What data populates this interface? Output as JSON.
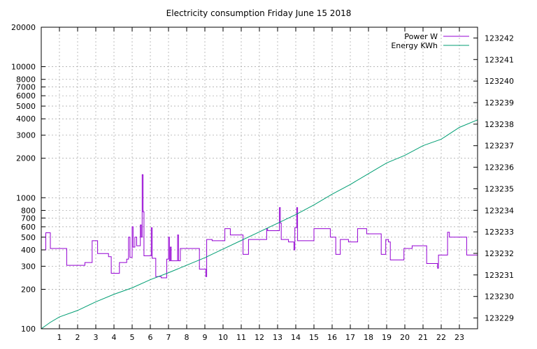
{
  "chart_data": {
    "type": "line",
    "title": "Electricity consumption Friday June 15 2018",
    "x": {
      "range": [
        0,
        24
      ],
      "tick_values": [
        1,
        2,
        3,
        4,
        5,
        6,
        7,
        8,
        9,
        10,
        11,
        12,
        13,
        14,
        15,
        16,
        17,
        18,
        19,
        20,
        21,
        22,
        23
      ],
      "tick_labels": [
        "1",
        "2",
        "3",
        "4",
        "5",
        "6",
        "7",
        "8",
        "9",
        "10",
        "11",
        "12",
        "13",
        "14",
        "15",
        "16",
        "17",
        "18",
        "19",
        "20",
        "21",
        "22",
        "23"
      ]
    },
    "y_left": {
      "scale": "log",
      "range": [
        100,
        20000
      ],
      "tick_values": [
        100,
        200,
        300,
        400,
        500,
        600,
        700,
        800,
        1000,
        2000,
        3000,
        4000,
        5000,
        6000,
        7000,
        8000,
        10000,
        20000
      ],
      "tick_labels": [
        "100",
        "200",
        "300",
        "400",
        "500",
        "600",
        "700",
        "800",
        "1000",
        "2000",
        "3000",
        "4000",
        "5000",
        "6000",
        "7000",
        "8000",
        "10000",
        "20000"
      ]
    },
    "y_right": {
      "scale": "linear",
      "range": [
        123228.5,
        123242.5
      ],
      "tick_values": [
        123229,
        123230,
        123231,
        123232,
        123233,
        123234,
        123235,
        123236,
        123237,
        123238,
        123239,
        123240,
        123241,
        123242
      ],
      "tick_labels": [
        "123229",
        "123230",
        "123231",
        "123232",
        "123233",
        "123234",
        "123235",
        "123236",
        "123237",
        "123238",
        "123239",
        "123240",
        "123241",
        "123242"
      ]
    },
    "grid": true,
    "legend_position": "top-right",
    "series": [
      {
        "name": "Power W",
        "axis": "left",
        "color": "#9400d3",
        "points": [
          [
            0,
            400
          ],
          [
            0.25,
            400
          ],
          [
            0.25,
            540
          ],
          [
            0.5,
            540
          ],
          [
            0.5,
            410
          ],
          [
            1.4,
            410
          ],
          [
            1.4,
            305
          ],
          [
            2.4,
            305
          ],
          [
            2.4,
            320
          ],
          [
            2.8,
            320
          ],
          [
            2.8,
            470
          ],
          [
            3.1,
            470
          ],
          [
            3.1,
            375
          ],
          [
            3.7,
            375
          ],
          [
            3.7,
            355
          ],
          [
            3.85,
            355
          ],
          [
            3.85,
            265
          ],
          [
            4.3,
            265
          ],
          [
            4.3,
            320
          ],
          [
            4.7,
            320
          ],
          [
            4.7,
            340
          ],
          [
            4.8,
            340
          ],
          [
            4.8,
            500
          ],
          [
            4.88,
            500
          ],
          [
            4.88,
            350
          ],
          [
            5.0,
            350
          ],
          [
            5.0,
            600
          ],
          [
            5.05,
            600
          ],
          [
            5.05,
            420
          ],
          [
            5.15,
            420
          ],
          [
            5.15,
            500
          ],
          [
            5.25,
            500
          ],
          [
            5.25,
            430
          ],
          [
            5.45,
            430
          ],
          [
            5.45,
            620
          ],
          [
            5.5,
            620
          ],
          [
            5.5,
            500
          ],
          [
            5.55,
            500
          ],
          [
            5.55,
            1500
          ],
          [
            5.6,
            1500
          ],
          [
            5.6,
            780
          ],
          [
            5.65,
            780
          ],
          [
            5.65,
            360
          ],
          [
            6.05,
            360
          ],
          [
            6.05,
            590
          ],
          [
            6.1,
            590
          ],
          [
            6.1,
            345
          ],
          [
            6.3,
            345
          ],
          [
            6.3,
            250
          ],
          [
            6.6,
            250
          ],
          [
            6.6,
            245
          ],
          [
            6.9,
            245
          ],
          [
            6.9,
            340
          ],
          [
            7.0,
            340
          ],
          [
            7.0,
            500
          ],
          [
            7.05,
            500
          ],
          [
            7.05,
            330
          ],
          [
            7.1,
            330
          ],
          [
            7.1,
            420
          ],
          [
            7.15,
            420
          ],
          [
            7.15,
            330
          ],
          [
            7.5,
            330
          ],
          [
            7.5,
            520
          ],
          [
            7.55,
            520
          ],
          [
            7.55,
            330
          ],
          [
            7.65,
            330
          ],
          [
            7.65,
            410
          ],
          [
            8.7,
            410
          ],
          [
            8.7,
            285
          ],
          [
            9.05,
            285
          ],
          [
            9.05,
            250
          ],
          [
            9.1,
            250
          ],
          [
            9.1,
            480
          ],
          [
            9.4,
            480
          ],
          [
            9.4,
            470
          ],
          [
            10.1,
            470
          ],
          [
            10.1,
            580
          ],
          [
            10.4,
            580
          ],
          [
            10.4,
            520
          ],
          [
            11.1,
            520
          ],
          [
            11.1,
            370
          ],
          [
            11.4,
            370
          ],
          [
            11.4,
            480
          ],
          [
            12.4,
            480
          ],
          [
            12.4,
            580
          ],
          [
            12.45,
            580
          ],
          [
            12.45,
            560
          ],
          [
            13.1,
            560
          ],
          [
            13.1,
            840
          ],
          [
            13.15,
            840
          ],
          [
            13.15,
            640
          ],
          [
            13.2,
            640
          ],
          [
            13.2,
            480
          ],
          [
            13.6,
            480
          ],
          [
            13.6,
            460
          ],
          [
            13.9,
            460
          ],
          [
            13.9,
            400
          ],
          [
            13.95,
            400
          ],
          [
            13.95,
            590
          ],
          [
            14.05,
            590
          ],
          [
            14.05,
            840
          ],
          [
            14.1,
            840
          ],
          [
            14.1,
            470
          ],
          [
            15.0,
            470
          ],
          [
            15.0,
            580
          ],
          [
            15.9,
            580
          ],
          [
            15.9,
            500
          ],
          [
            16.2,
            500
          ],
          [
            16.2,
            370
          ],
          [
            16.45,
            370
          ],
          [
            16.45,
            480
          ],
          [
            16.9,
            480
          ],
          [
            16.9,
            460
          ],
          [
            17.4,
            460
          ],
          [
            17.4,
            580
          ],
          [
            17.9,
            580
          ],
          [
            17.9,
            530
          ],
          [
            18.7,
            530
          ],
          [
            18.7,
            370
          ],
          [
            18.95,
            370
          ],
          [
            18.95,
            480
          ],
          [
            19.1,
            480
          ],
          [
            19.1,
            460
          ],
          [
            19.2,
            460
          ],
          [
            19.2,
            335
          ],
          [
            19.95,
            335
          ],
          [
            19.95,
            410
          ],
          [
            20.4,
            410
          ],
          [
            20.4,
            430
          ],
          [
            21.2,
            430
          ],
          [
            21.2,
            315
          ],
          [
            21.8,
            315
          ],
          [
            21.8,
            290
          ],
          [
            21.85,
            290
          ],
          [
            21.85,
            365
          ],
          [
            22.35,
            365
          ],
          [
            22.35,
            545
          ],
          [
            22.45,
            545
          ],
          [
            22.45,
            500
          ],
          [
            23.4,
            500
          ],
          [
            23.4,
            365
          ],
          [
            24,
            365
          ]
        ]
      },
      {
        "name": "Energy KWh",
        "axis": "right",
        "color": "#009e73",
        "points": [
          [
            0,
            123228.5
          ],
          [
            0.5,
            123228.8
          ],
          [
            1,
            123229.05
          ],
          [
            2,
            123229.35
          ],
          [
            3,
            123229.75
          ],
          [
            4,
            123230.1
          ],
          [
            5,
            123230.4
          ],
          [
            6,
            123230.78
          ],
          [
            7,
            123231.1
          ],
          [
            8,
            123231.45
          ],
          [
            9,
            123231.8
          ],
          [
            10,
            123232.2
          ],
          [
            11,
            123232.6
          ],
          [
            12,
            123233.0
          ],
          [
            13,
            123233.4
          ],
          [
            14,
            123233.8
          ],
          [
            15,
            123234.25
          ],
          [
            16,
            123234.75
          ],
          [
            17,
            123235.2
          ],
          [
            18,
            123235.7
          ],
          [
            19,
            123236.2
          ],
          [
            20,
            123236.55
          ],
          [
            21,
            123237.0
          ],
          [
            22,
            123237.3
          ],
          [
            23,
            123237.85
          ],
          [
            24,
            123238.2
          ]
        ]
      }
    ]
  }
}
